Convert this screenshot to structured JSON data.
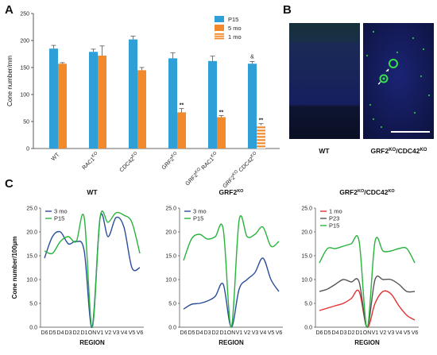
{
  "panels": {
    "A": {
      "label": "A"
    },
    "B": {
      "label": "B",
      "images": [
        {
          "caption": "WT"
        },
        {
          "caption": "GRF2KO/CDC42KO"
        }
      ]
    },
    "C": {
      "label": "C"
    }
  },
  "colors": {
    "p15_blue": "#2f9fd8",
    "mo5_orange": "#f28a2b",
    "line_blue": "#2b4d9a",
    "line_green": "#27b33c",
    "line_red": "#e32f2f",
    "line_gray": "#555555"
  },
  "chart_data": [
    {
      "type": "bar",
      "panel": "A",
      "ylabel": "Cone number/mm",
      "ylim": [
        0,
        250
      ],
      "yticks": [
        0,
        50,
        100,
        150,
        200,
        250
      ],
      "categories": [
        "WT",
        "RAC1KO",
        "CDC42KO",
        "GRF2KO",
        "GRF2KO RAC1KO",
        "GRF2KO CDC42KO"
      ],
      "series": [
        {
          "name": "P15",
          "values": [
            185,
            179,
            202,
            167,
            162,
            157
          ],
          "errors": [
            6,
            5,
            6,
            10,
            9,
            4
          ]
        },
        {
          "name": "5 mo",
          "values": [
            157,
            172,
            145,
            67,
            58,
            null
          ],
          "errors": [
            2,
            18,
            5,
            7,
            3,
            null
          ]
        },
        {
          "name": "1 mo",
          "values": [
            null,
            null,
            null,
            null,
            null,
            43
          ],
          "errors": [
            null,
            null,
            null,
            null,
            null,
            3
          ]
        }
      ],
      "annotations": [
        {
          "category": "GRF2KO",
          "text": "**"
        },
        {
          "category": "GRF2KO RAC1KO",
          "text": "**"
        },
        {
          "category": "GRF2KO CDC42KO",
          "text": "**"
        },
        {
          "category": "GRF2KO CDC42KO",
          "text": "&"
        }
      ],
      "legend": "top-right"
    },
    {
      "type": "line",
      "panel": "C",
      "title": "WT",
      "ylabel": "Cone number/100µm",
      "xlabel": "REGION",
      "ylim": [
        0,
        25
      ],
      "yticks": [
        0.0,
        5.0,
        10.0,
        15.0,
        20.0,
        25.0
      ],
      "x": [
        "D6",
        "D5",
        "D4",
        "D3",
        "D2",
        "D1",
        "ON",
        "V1",
        "V2",
        "V3",
        "V4",
        "V5",
        "V6"
      ],
      "series": [
        {
          "name": "3 mo",
          "color": "#2b4d9a",
          "values": [
            14.5,
            19.0,
            20.0,
            17.5,
            18.0,
            16.0,
            0.0,
            23.0,
            19.0,
            23.0,
            21.0,
            12.5,
            12.5
          ]
        },
        {
          "name": "P15",
          "color": "#27b33c",
          "values": [
            16.0,
            15.5,
            18.0,
            19.0,
            18.0,
            23.0,
            0.0,
            23.0,
            22.0,
            24.0,
            23.5,
            22.0,
            15.5
          ]
        }
      ],
      "legend": "top-left"
    },
    {
      "type": "line",
      "panel": "C",
      "title": "GRF2KO",
      "xlabel": "REGION",
      "ylim": [
        0,
        25
      ],
      "yticks": [
        0.0,
        5.0,
        10.0,
        15.0,
        20.0,
        25.0
      ],
      "x": [
        "D6",
        "D5",
        "D4",
        "D3",
        "D2",
        "D1",
        "ON",
        "V1",
        "V2",
        "V3",
        "V4",
        "V5",
        "V6"
      ],
      "series": [
        {
          "name": "3 mo",
          "color": "#2b4d9a",
          "values": [
            3.8,
            4.8,
            5.0,
            5.5,
            6.5,
            9.0,
            0.0,
            8.0,
            10.0,
            11.5,
            14.5,
            10.0,
            7.5
          ]
        },
        {
          "name": "P15",
          "color": "#27b33c",
          "values": [
            14.0,
            18.5,
            19.5,
            18.5,
            19.0,
            20.5,
            0.0,
            22.5,
            19.0,
            19.5,
            21.0,
            17.0,
            18.0
          ]
        }
      ],
      "legend": "top-left"
    },
    {
      "type": "line",
      "panel": "C",
      "title": "GRF2KO/CDC42KO",
      "xlabel": "REGION",
      "ylim": [
        0,
        25
      ],
      "yticks": [
        0.0,
        5.0,
        10.0,
        15.0,
        20.0,
        25.0
      ],
      "x": [
        "D6",
        "D5",
        "D4",
        "D3",
        "D2",
        "D1",
        "ON",
        "V1",
        "V2",
        "V3",
        "V4",
        "V5",
        "V6"
      ],
      "series": [
        {
          "name": "1 mo",
          "color": "#e32f2f",
          "values": [
            3.5,
            4.0,
            4.5,
            5.0,
            6.0,
            7.5,
            0.0,
            5.0,
            7.5,
            7.0,
            4.5,
            2.5,
            1.5
          ]
        },
        {
          "name": "P23",
          "color": "#555555",
          "values": [
            7.5,
            8.0,
            9.0,
            10.0,
            9.5,
            9.5,
            0.0,
            10.0,
            10.0,
            10.0,
            9.0,
            7.5,
            7.5
          ]
        },
        {
          "name": "P15",
          "color": "#27b33c",
          "values": [
            13.5,
            16.5,
            16.5,
            17.0,
            17.5,
            18.0,
            0.0,
            18.0,
            16.0,
            16.0,
            16.5,
            16.5,
            13.5
          ]
        }
      ],
      "legend": "top-left"
    }
  ]
}
